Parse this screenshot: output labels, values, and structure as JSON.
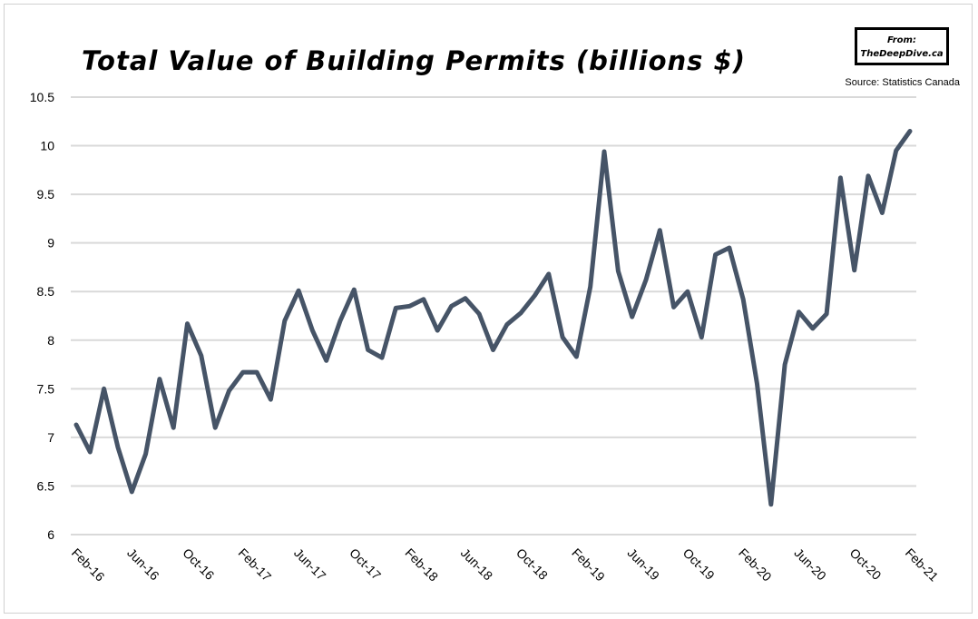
{
  "logo": {
    "line1": "From:",
    "line2": "TheDeepDive.ca"
  },
  "source": "Source: Statistics Canada",
  "chart_data": {
    "type": "line",
    "title": "Total Value of Building Permits (billions $)",
    "xlabel": "",
    "ylabel": "",
    "ylim": [
      6,
      10.5
    ],
    "yticks": [
      "6",
      "6.5",
      "7",
      "7.5",
      "8",
      "8.5",
      "9",
      "9.5",
      "10",
      "10.5"
    ],
    "xtick_labels": [
      "Feb-16",
      "Jun-16",
      "Oct-16",
      "Feb-17",
      "Jun-17",
      "Oct-17",
      "Feb-18",
      "Jun-18",
      "Oct-18",
      "Feb-19",
      "Jun-19",
      "Oct-19",
      "Feb-20",
      "Jun-20",
      "Oct-20",
      "Feb-21"
    ],
    "grid": "horizontal",
    "line_color": "#465467",
    "x_start": "Feb-16",
    "x_end": "Feb-21",
    "x_frequency": "monthly",
    "values": [
      7.13,
      6.85,
      7.5,
      6.9,
      6.44,
      6.83,
      7.6,
      7.1,
      8.17,
      7.84,
      7.1,
      7.48,
      7.67,
      7.67,
      7.39,
      8.2,
      8.51,
      8.1,
      7.79,
      8.2,
      8.52,
      7.9,
      7.82,
      8.33,
      8.35,
      8.42,
      8.1,
      8.35,
      8.43,
      8.27,
      7.9,
      8.16,
      8.28,
      8.46,
      8.68,
      8.03,
      7.83,
      8.55,
      9.94,
      8.71,
      8.24,
      8.62,
      9.13,
      8.34,
      8.5,
      8.03,
      8.88,
      8.95,
      8.42,
      7.55,
      6.31,
      7.75,
      8.29,
      8.12,
      8.27,
      9.67,
      8.72,
      9.69,
      9.31,
      9.95,
      10.15
    ]
  }
}
